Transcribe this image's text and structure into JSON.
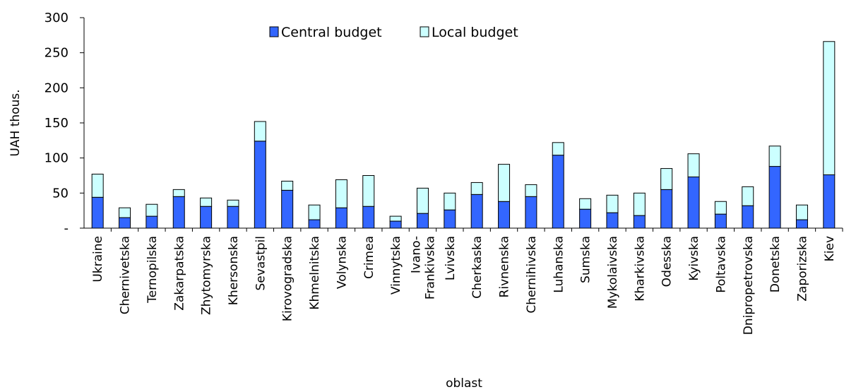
{
  "chart_data": {
    "type": "bar",
    "stacked": true,
    "title": "",
    "xlabel": "oblast",
    "ylabel": "UAH thous.",
    "ylim": [
      0,
      300
    ],
    "yticks": [
      0,
      50,
      100,
      150,
      200,
      250,
      300
    ],
    "ytick_labels": [
      "-",
      "50",
      "100",
      "150",
      "200",
      "250",
      "300"
    ],
    "grid": false,
    "legend_position": "top-center",
    "categories": [
      "Ukraine",
      "Chernivetska",
      "Ternopilska",
      "Zakarpatska",
      "Zhytomyrska",
      "Khersonska",
      "Sevastpil",
      "Kirovogradska",
      "Khmelnitska",
      "Volynska",
      "Crimea",
      "Vinnytska",
      "Ivano-Frankivska",
      "Lvivska",
      "Cherkaska",
      "Rivnenska",
      "Chernihivska",
      "Luhanska",
      "Sumska",
      "Mykolaivska",
      "Kharkivska",
      "Odesska",
      "Kyivska",
      "Poltavska",
      "Dnipropetrovska",
      "Donetska",
      "Zaporizska",
      "Kiev"
    ],
    "category_lines": [
      [
        "Ukraine"
      ],
      [
        "Chernivetska"
      ],
      [
        "Ternopilska"
      ],
      [
        "Zakarpatska"
      ],
      [
        "Zhytomyrska"
      ],
      [
        "Khersonska"
      ],
      [
        "Sevastpil"
      ],
      [
        "Kirovogradska"
      ],
      [
        "Khmelnitska"
      ],
      [
        "Volynska"
      ],
      [
        "Crimea"
      ],
      [
        "Vinnytska"
      ],
      [
        "Ivano-",
        "Frankivska"
      ],
      [
        "Lvivska"
      ],
      [
        "Cherkaska"
      ],
      [
        "Rivnenska"
      ],
      [
        "Chernihivska"
      ],
      [
        "Luhanska"
      ],
      [
        "Sumska"
      ],
      [
        "Mykolaivska"
      ],
      [
        "Kharkivska"
      ],
      [
        "Odesska"
      ],
      [
        "Kyivska"
      ],
      [
        "Poltavska"
      ],
      [
        "Dnipropetrovska"
      ],
      [
        "Donetska"
      ],
      [
        "Zaporizska"
      ],
      [
        "Kiev"
      ]
    ],
    "series": [
      {
        "name": "Central budget",
        "color": "#3366FF",
        "values": [
          44,
          15,
          17,
          45,
          31,
          31,
          124,
          54,
          12,
          29,
          31,
          10,
          21,
          26,
          48,
          38,
          45,
          104,
          27,
          22,
          18,
          55,
          73,
          20,
          32,
          88,
          12,
          76
        ]
      },
      {
        "name": "Local budget",
        "color": "#CCFFFF",
        "values": [
          33,
          14,
          17,
          10,
          12,
          9,
          28,
          13,
          21,
          40,
          44,
          7,
          36,
          24,
          17,
          53,
          17,
          18,
          15,
          25,
          32,
          30,
          33,
          18,
          27,
          29,
          21,
          190
        ]
      }
    ]
  }
}
